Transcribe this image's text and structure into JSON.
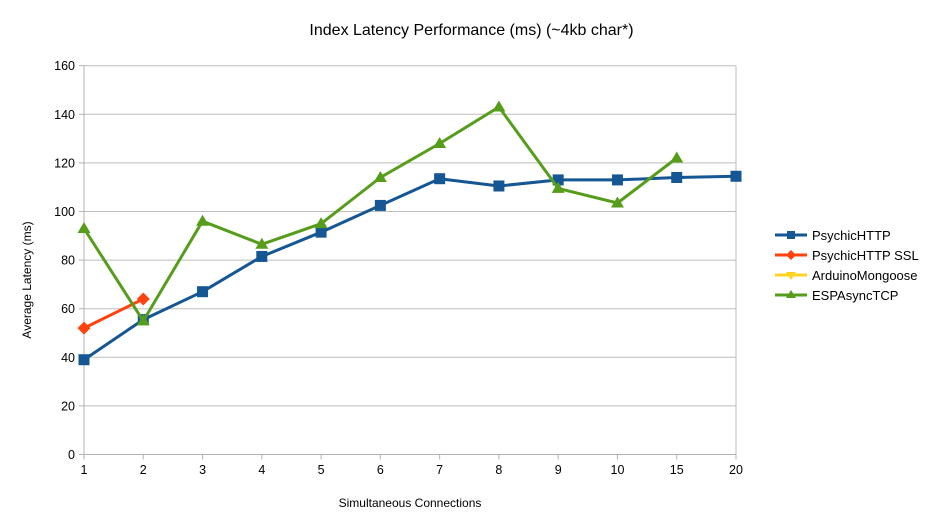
{
  "colors": {
    "background": "#ffffff",
    "axis_line": "#b3b3b3",
    "gridline": "#bdbdbd",
    "text": "#000000"
  },
  "chart_data": {
    "type": "line",
    "title": "Index Latency Performance (ms) (~4kb char*)",
    "xlabel": "Simultaneous Connections",
    "ylabel": "Average Latency (ms)",
    "x_categories": [
      "1",
      "2",
      "3",
      "4",
      "5",
      "6",
      "7",
      "8",
      "9",
      "10",
      "15",
      "20"
    ],
    "ylim": [
      0,
      160
    ],
    "ytick_step": 20,
    "grid": "horizontal",
    "legend_position": "right",
    "series": [
      {
        "name": "PsychicHTTP",
        "color": "#155694",
        "marker": "square",
        "values": [
          39,
          55.5,
          67,
          81.5,
          91.5,
          102.5,
          113.5,
          110.5,
          113,
          113,
          114,
          114.5
        ]
      },
      {
        "name": "PsychicHTTP SSL",
        "color": "#ff420e",
        "marker": "diamond",
        "values": [
          52,
          64,
          null,
          null,
          null,
          null,
          null,
          null,
          null,
          null,
          null,
          null
        ]
      },
      {
        "name": "ArduinoMongoose",
        "color": "#ffd320",
        "marker": "triangle-down",
        "values": [
          null,
          null,
          null,
          null,
          null,
          null,
          null,
          null,
          null,
          null,
          null,
          null
        ]
      },
      {
        "name": "ESPAsyncTCP",
        "color": "#579d1c",
        "marker": "triangle-up",
        "values": [
          93,
          55,
          96,
          86.5,
          95,
          114,
          128,
          143,
          109.5,
          103.5,
          122,
          null
        ]
      }
    ]
  }
}
